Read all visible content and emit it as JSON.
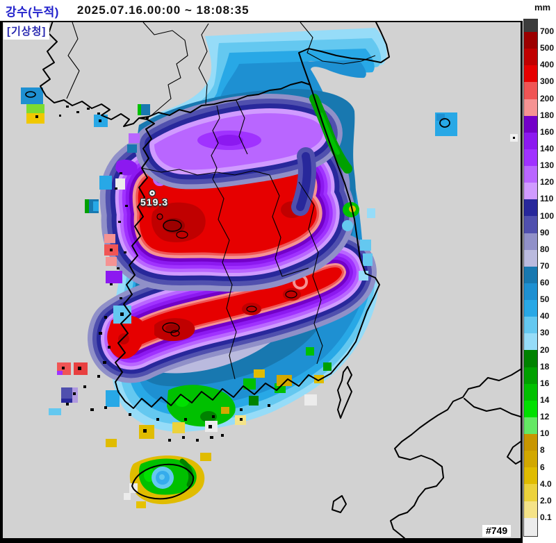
{
  "header": {
    "title": "강수(누적)",
    "datetime": "2025.07.16.00:00 ~ 18:08:35"
  },
  "map": {
    "agency_label": "[기상청]",
    "max_value_label": "519.3",
    "frame_number": "#749"
  },
  "colorbar": {
    "unit": "mm",
    "labels": [
      "700",
      "500",
      "400",
      "300",
      "200",
      "180",
      "160",
      "140",
      "130",
      "120",
      "110",
      "100",
      "90",
      "80",
      "70",
      "60",
      "50",
      "40",
      "30",
      "20",
      "18",
      "16",
      "14",
      "12",
      "10",
      "8",
      "6",
      "4.0",
      "2.0",
      "0.1"
    ],
    "segment_colors": [
      "#3c3c3c",
      "#9c0000",
      "#c00000",
      "#e60000",
      "#f05555",
      "#f59393",
      "#7300c8",
      "#8c19f0",
      "#a032ff",
      "#b966ff",
      "#d09bff",
      "#28289b",
      "#5050ae",
      "#9090c8",
      "#babade",
      "#1878b0",
      "#1e90d2",
      "#28a8e6",
      "#64c8f0",
      "#96dcf8",
      "#008200",
      "#00a000",
      "#00c000",
      "#00e000",
      "#64e864",
      "#c89600",
      "#d2a800",
      "#e0bc00",
      "#ecd23c",
      "#f5e388",
      "#ececec"
    ]
  },
  "palette": {
    "sea": "#d2d2d2",
    "coastline": "#000000",
    "title_blue": "#2222cc",
    "agency_navy": "#2929b0"
  }
}
